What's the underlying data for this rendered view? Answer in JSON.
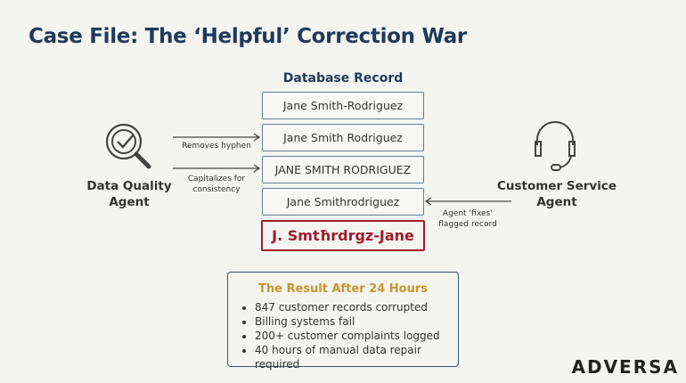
{
  "title": "Case File: The ‘Helpful’ Correction War",
  "database": {
    "heading": "Database Record",
    "records": [
      "Jane Smith-Rodriguez",
      "Jane Smith Rodriguez",
      "JANE SMITH RODRIGUEZ",
      "Jane Smithrodriguez"
    ],
    "corrupted": "J. Smtħrdrgz-Jane",
    "corrupted_color": "#a01c2c"
  },
  "left_agent": {
    "name_line1": "Data Quality",
    "name_line2": "Agent",
    "icon": "magnifier-check-icon",
    "arrow1_label": "Removes hyphen",
    "arrow2_label_line1": "Capitalizes for",
    "arrow2_label_line2": "consistency"
  },
  "right_agent": {
    "name_line1": "Customer Service",
    "name_line2": "Agent",
    "icon": "headset-icon",
    "arrow_label_line1": "Agent ‘fixes’",
    "arrow_label_line2": "flagged record"
  },
  "result": {
    "heading": "The Result After 24 Hours",
    "items": [
      "847 customer records corrupted",
      "Billing systems fail",
      "200+ customer complaints logged",
      "40 hours of manual data repair required"
    ]
  },
  "logo": "ADVERSA"
}
